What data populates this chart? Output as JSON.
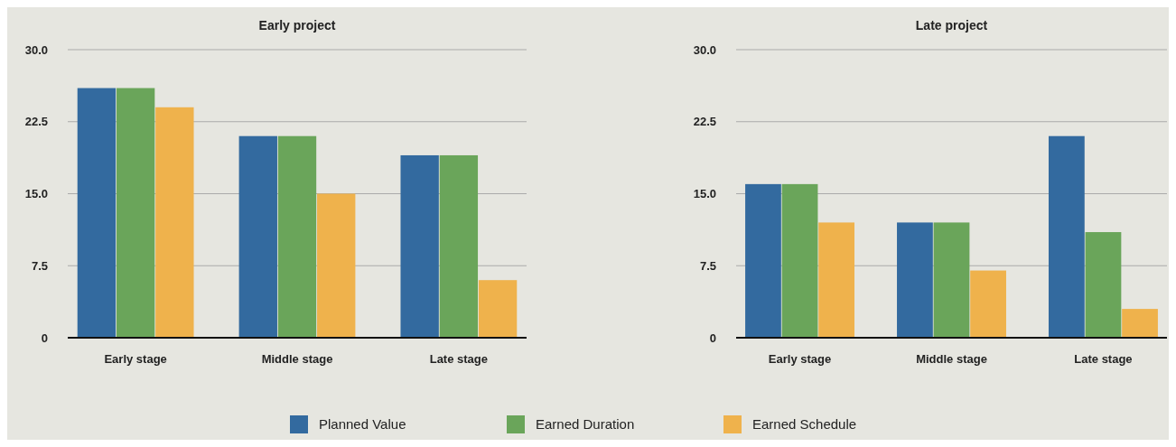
{
  "chart_data": [
    {
      "type": "bar",
      "title": "Early project",
      "categories": [
        "Early stage",
        "Middle stage",
        "Late stage"
      ],
      "series": [
        {
          "name": "Planned Value",
          "color": "#336a9f",
          "values": [
            26,
            21,
            19
          ]
        },
        {
          "name": "Earned Duration",
          "color": "#6aa55a",
          "values": [
            26,
            21,
            19
          ]
        },
        {
          "name": "Earned Schedule",
          "color": "#efb24c",
          "values": [
            24,
            15,
            6
          ]
        }
      ],
      "ylim": [
        0,
        30
      ],
      "yticks": [
        {
          "value": 0,
          "label": "0"
        },
        {
          "value": 7.5,
          "label": "7.5"
        },
        {
          "value": 15,
          "label": "15.0"
        },
        {
          "value": 22.5,
          "label": "22.5"
        },
        {
          "value": 30,
          "label": "30.0"
        }
      ],
      "grid": "y",
      "legend": "bottom"
    },
    {
      "type": "bar",
      "title": "Late project",
      "categories": [
        "Early stage",
        "Middle stage",
        "Late stage"
      ],
      "series": [
        {
          "name": "Planned Value",
          "color": "#336a9f",
          "values": [
            16,
            12,
            21
          ]
        },
        {
          "name": "Earned Duration",
          "color": "#6aa55a",
          "values": [
            16,
            12,
            11
          ]
        },
        {
          "name": "Earned Schedule",
          "color": "#efb24c",
          "values": [
            12,
            7,
            3
          ]
        }
      ],
      "ylim": [
        0,
        30
      ],
      "yticks": [
        {
          "value": 0,
          "label": "0"
        },
        {
          "value": 7.5,
          "label": "7.5"
        },
        {
          "value": 15,
          "label": "15.0"
        },
        {
          "value": 22.5,
          "label": "22.5"
        },
        {
          "value": 30,
          "label": "30.0"
        }
      ],
      "grid": "y",
      "legend": "bottom"
    }
  ]
}
